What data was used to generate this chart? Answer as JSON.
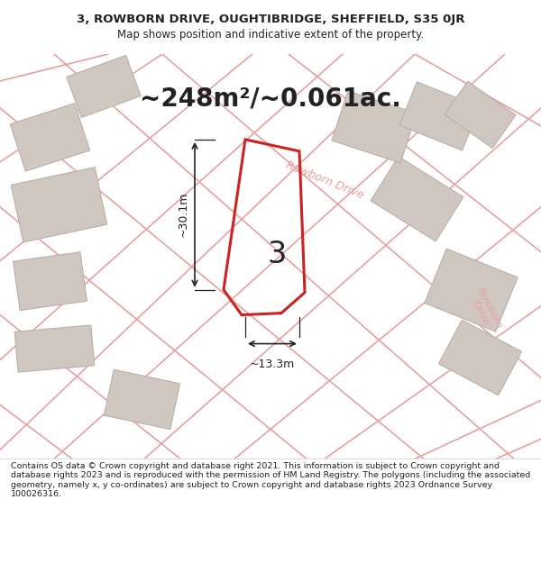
{
  "title_line1": "3, ROWBORN DRIVE, OUGHTIBRIDGE, SHEFFIELD, S35 0JR",
  "title_line2": "Map shows position and indicative extent of the property.",
  "area_text": "~248m²/~0.061ac.",
  "number_label": "3",
  "dim_width": "~13.3m",
  "dim_height": "~30.1m",
  "road_label1": "Rowborn Drive",
  "road_label2": "Rowborn\nDrive",
  "footer_text": "Contains OS data © Crown copyright and database right 2021. This information is subject to Crown copyright and database rights 2023 and is reproduced with the permission of HM Land Registry. The polygons (including the associated geometry, namely x, y co-ordinates) are subject to Crown copyright and database rights 2023 Ordnance Survey 100026316.",
  "map_bg": "#ede8e4",
  "plot_color": "#cc2222",
  "road_line_color": "#e8a0a0",
  "building_fill": "#d0c8c0",
  "building_edge": "#b8b0a8",
  "text_color": "#222222",
  "title_bg": "#ffffff",
  "footer_bg": "#ffffff"
}
